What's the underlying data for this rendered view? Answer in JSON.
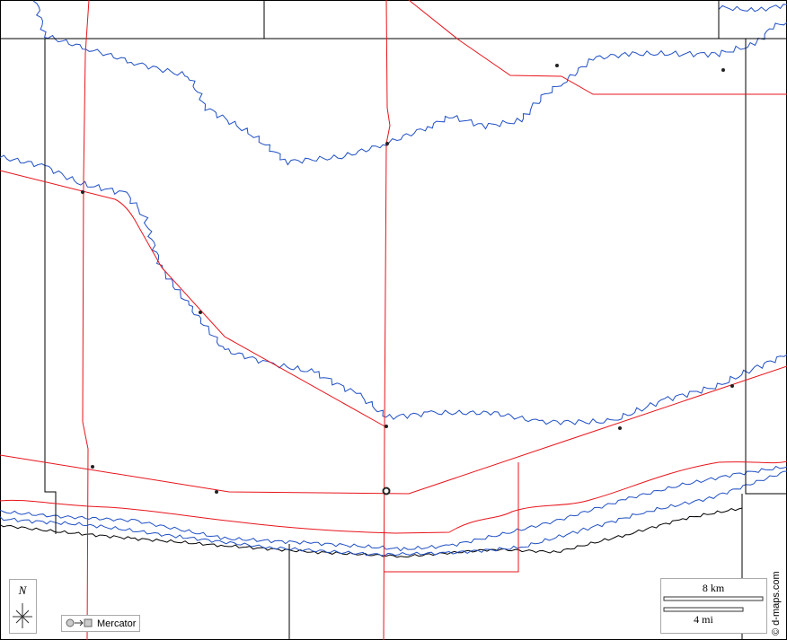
{
  "compass": {
    "label": "N"
  },
  "projection": {
    "label": "Mercator"
  },
  "scale": {
    "km": "8 km",
    "mi": "4 mi"
  },
  "credit": "© d-maps.com"
}
